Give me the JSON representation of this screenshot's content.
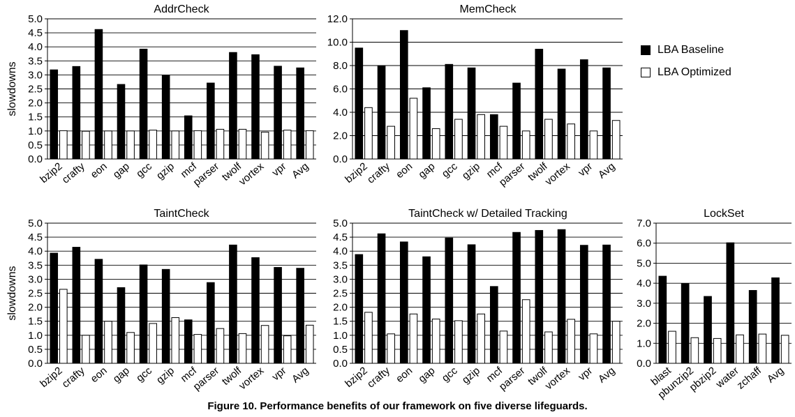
{
  "figure_caption": "Figure 10. Performance benefits of our framework on five diverse lifeguards.",
  "legend": [
    {
      "label": "LBA Baseline",
      "color": "#000000"
    },
    {
      "label": "LBA Optimized",
      "color": "#ffffff"
    }
  ],
  "chart_data": [
    {
      "type": "bar",
      "title": "AddrCheck",
      "ylabel": "slowdowns",
      "ylim": [
        0,
        5
      ],
      "yticks": [
        "0.0",
        "0.5",
        "1.0",
        "1.5",
        "2.0",
        "2.5",
        "3.0",
        "3.5",
        "4.0",
        "4.5",
        "5.0"
      ],
      "categories": [
        "bzip2",
        "crafty",
        "eon",
        "gap",
        "gcc",
        "gzip",
        "mcf",
        "parser",
        "twolf",
        "vortex",
        "vpr",
        "Avg"
      ],
      "series": [
        {
          "name": "LBA Baseline",
          "values": [
            3.18,
            3.3,
            4.62,
            2.66,
            3.92,
            2.98,
            1.54,
            2.71,
            3.8,
            3.72,
            3.31,
            3.25
          ]
        },
        {
          "name": "LBA Optimized",
          "values": [
            1.01,
            0.99,
            1.0,
            1.0,
            1.03,
            1.0,
            1.01,
            1.06,
            1.06,
            0.96,
            1.03,
            1.01
          ]
        }
      ]
    },
    {
      "type": "bar",
      "title": "MemCheck",
      "ylabel": "",
      "ylim": [
        0,
        12
      ],
      "yticks": [
        "0.0",
        "2.0",
        "4.0",
        "6.0",
        "8.0",
        "10.0",
        "12.0"
      ],
      "categories": [
        "bzip2",
        "crafty",
        "eon",
        "gap",
        "gcc",
        "gzip",
        "mcf",
        "parser",
        "twolf",
        "vortex",
        "vpr",
        "Avg"
      ],
      "series": [
        {
          "name": "LBA Baseline",
          "values": [
            9.5,
            8.0,
            11.0,
            6.1,
            8.1,
            7.8,
            3.8,
            6.5,
            9.4,
            7.7,
            8.5,
            7.8
          ]
        },
        {
          "name": "LBA Optimized",
          "values": [
            4.4,
            2.8,
            5.2,
            2.6,
            3.4,
            3.8,
            2.8,
            2.4,
            3.4,
            3.0,
            2.4,
            3.3
          ]
        }
      ]
    },
    {
      "type": "bar",
      "title": "TaintCheck",
      "ylabel": "slowdowns",
      "ylim": [
        0,
        5
      ],
      "yticks": [
        "0.0",
        "0.5",
        "1.0",
        "1.5",
        "2.0",
        "2.5",
        "3.0",
        "3.5",
        "4.0",
        "4.5",
        "5.0"
      ],
      "categories": [
        "bzip2",
        "crafty",
        "eon",
        "gap",
        "gcc",
        "gzip",
        "mcf",
        "parser",
        "twolf",
        "vortex",
        "vpr",
        "Avg"
      ],
      "series": [
        {
          "name": "LBA Baseline",
          "values": [
            3.93,
            4.14,
            3.71,
            2.7,
            3.51,
            3.35,
            1.55,
            2.88,
            4.22,
            3.77,
            3.42,
            3.39
          ]
        },
        {
          "name": "LBA Optimized",
          "values": [
            2.64,
            1.0,
            1.5,
            1.1,
            1.42,
            1.63,
            1.03,
            1.24,
            1.06,
            1.35,
            0.98,
            1.36
          ]
        }
      ]
    },
    {
      "type": "bar",
      "title": "TaintCheck w/ Detailed Tracking",
      "ylabel": "",
      "ylim": [
        0,
        5
      ],
      "yticks": [
        "0.0",
        "0.5",
        "1.0",
        "1.5",
        "2.0",
        "2.5",
        "3.0",
        "3.5",
        "4.0",
        "4.5",
        "5.0"
      ],
      "categories": [
        "bzip2",
        "crafty",
        "eon",
        "gap",
        "gcc",
        "gzip",
        "mcf",
        "parser",
        "twolf",
        "vortex",
        "vpr",
        "Avg"
      ],
      "series": [
        {
          "name": "LBA Baseline",
          "values": [
            3.88,
            4.62,
            4.33,
            3.8,
            4.47,
            4.23,
            2.74,
            4.67,
            4.74,
            4.77,
            4.21,
            4.22
          ]
        },
        {
          "name": "LBA Optimized",
          "values": [
            1.82,
            1.05,
            1.76,
            1.58,
            1.52,
            1.76,
            1.15,
            2.27,
            1.12,
            1.57,
            1.05,
            1.5
          ]
        }
      ]
    },
    {
      "type": "bar",
      "title": "LockSet",
      "ylabel": "",
      "ylim": [
        0,
        7
      ],
      "yticks": [
        "0.0",
        "1.0",
        "2.0",
        "3.0",
        "4.0",
        "5.0",
        "6.0",
        "7.0"
      ],
      "categories": [
        "blast",
        "pbunzip2",
        "pbzip2",
        "water",
        "zchaff",
        "Avg"
      ],
      "series": [
        {
          "name": "LBA Baseline",
          "values": [
            4.35,
            3.97,
            3.34,
            6.02,
            3.64,
            4.27
          ]
        },
        {
          "name": "LBA Optimized",
          "values": [
            1.6,
            1.28,
            1.24,
            1.42,
            1.46,
            1.4
          ]
        }
      ]
    }
  ]
}
